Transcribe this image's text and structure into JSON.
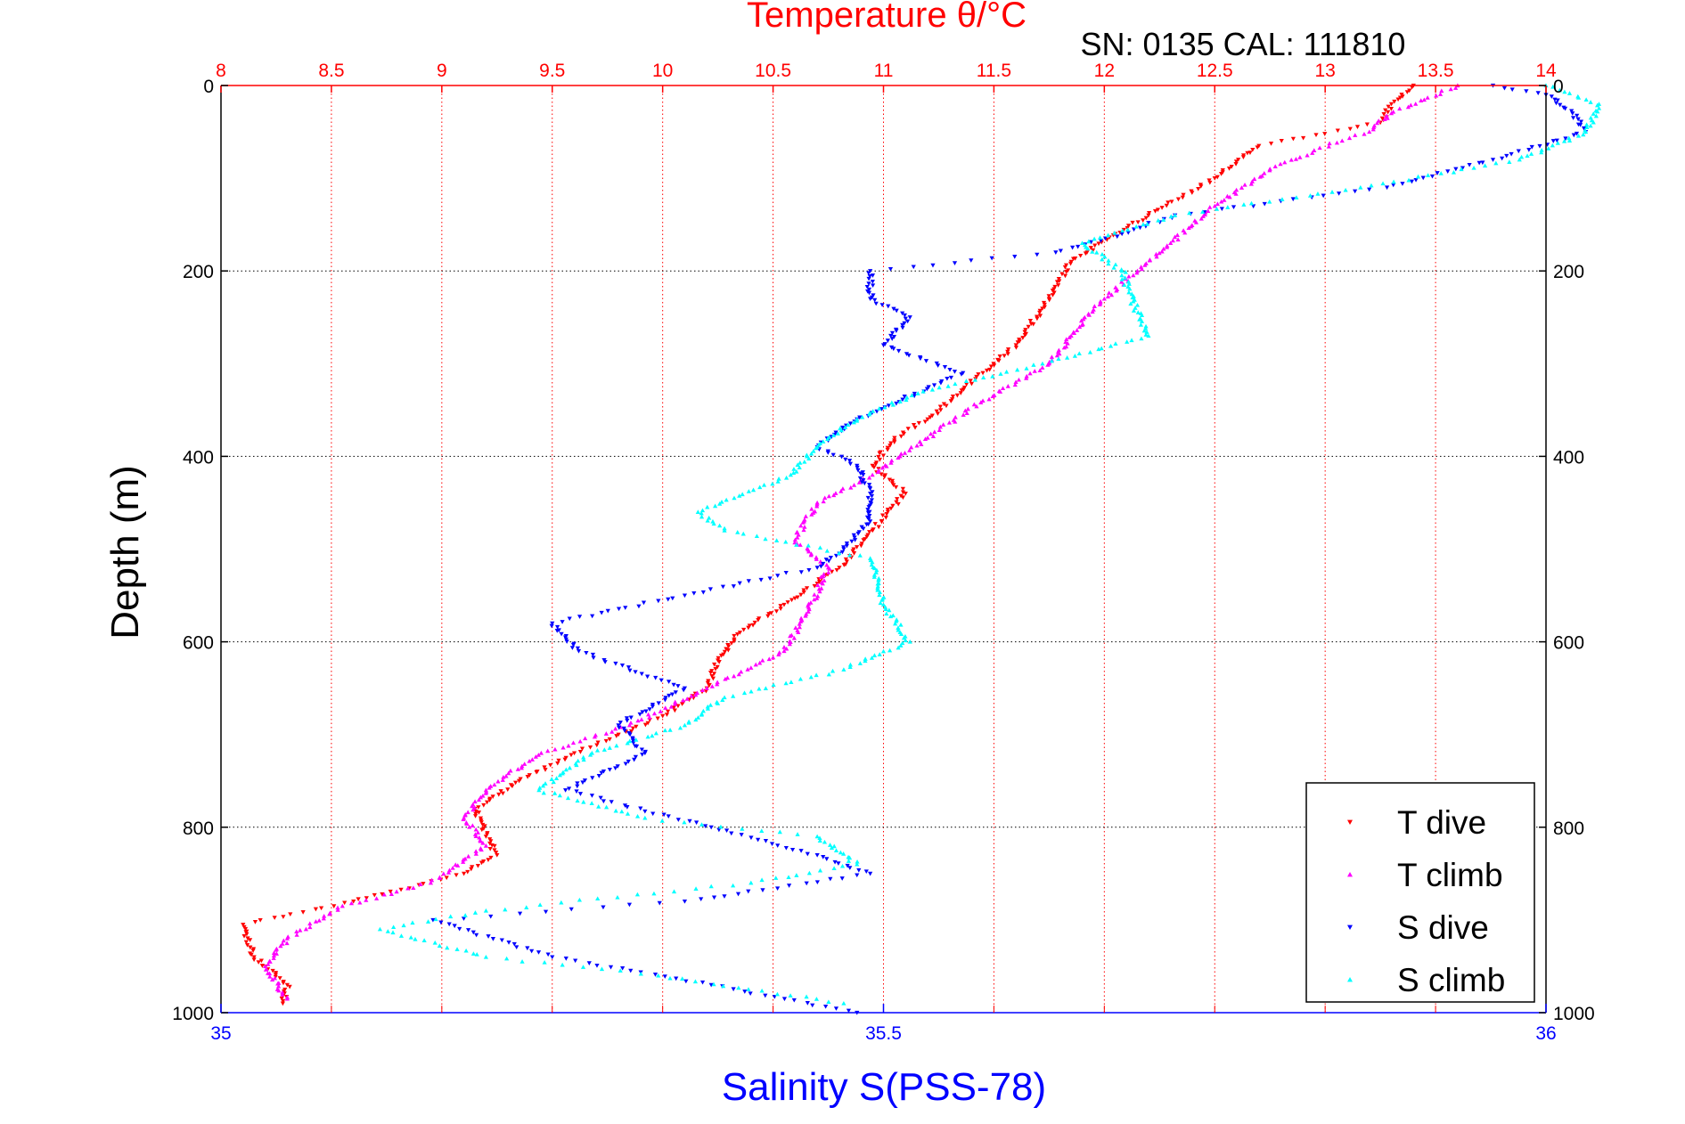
{
  "chart_data": {
    "type": "scatter",
    "title": "Temperature θ/°C",
    "subtitle": "SN: 0135  CAL: 111810",
    "xlabel": "Salinity S(PSS-78)",
    "ylabel": "Depth (m)",
    "x_top_label": "Temperature θ/°C",
    "x_top_range": [
      8,
      14
    ],
    "x_top_ticks": [
      "8",
      "8.5",
      "9",
      "9.5",
      "10",
      "10.5",
      "11",
      "11.5",
      "12",
      "12.5",
      "13",
      "13.5",
      "14"
    ],
    "x_bottom_range": [
      35,
      36
    ],
    "x_bottom_ticks": [
      "35",
      "35.5",
      "36"
    ],
    "y_range": [
      0,
      1000
    ],
    "y_reversed": true,
    "y_ticks": [
      "0",
      "200",
      "400",
      "600",
      "800",
      "1000"
    ],
    "grid": true,
    "legend_position": "bottom-right",
    "colors": {
      "top_axis": "#ff0000",
      "bottom_axis": "#0000ff",
      "t_dive": "#ff0000",
      "t_climb": "#ff00ff",
      "s_dive": "#0000ff",
      "s_climb": "#00ffff"
    },
    "series": [
      {
        "name": "T dive",
        "axis": "temperature",
        "marker": "down-triangle",
        "color": "#ff0000",
        "points": [
          [
            13.4,
            0
          ],
          [
            13.3,
            20
          ],
          [
            13.25,
            40
          ],
          [
            12.7,
            65
          ],
          [
            12.5,
            100
          ],
          [
            12.2,
            140
          ],
          [
            12.05,
            160
          ],
          [
            11.85,
            190
          ],
          [
            11.75,
            230
          ],
          [
            11.6,
            280
          ],
          [
            11.45,
            310
          ],
          [
            11.2,
            360
          ],
          [
            11.05,
            380
          ],
          [
            10.95,
            410
          ],
          [
            11.1,
            440
          ],
          [
            10.95,
            480
          ],
          [
            10.8,
            520
          ],
          [
            10.55,
            560
          ],
          [
            10.35,
            590
          ],
          [
            10.25,
            620
          ],
          [
            10.2,
            650
          ],
          [
            10.0,
            680
          ],
          [
            9.8,
            700
          ],
          [
            9.6,
            720
          ],
          [
            9.35,
            750
          ],
          [
            9.15,
            780
          ],
          [
            9.2,
            810
          ],
          [
            9.25,
            830
          ],
          [
            9.1,
            850
          ],
          [
            8.6,
            880
          ],
          [
            8.1,
            905
          ],
          [
            8.15,
            940
          ],
          [
            8.3,
            970
          ],
          [
            8.28,
            990
          ]
        ]
      },
      {
        "name": "T climb",
        "axis": "temperature",
        "marker": "up-triangle",
        "color": "#ff00ff",
        "points": [
          [
            13.6,
            0
          ],
          [
            13.3,
            30
          ],
          [
            13.2,
            50
          ],
          [
            12.95,
            70
          ],
          [
            12.75,
            90
          ],
          [
            12.5,
            130
          ],
          [
            12.3,
            170
          ],
          [
            12.15,
            200
          ],
          [
            12.0,
            230
          ],
          [
            11.85,
            270
          ],
          [
            11.75,
            300
          ],
          [
            11.45,
            340
          ],
          [
            11.2,
            380
          ],
          [
            10.95,
            420
          ],
          [
            10.7,
            450
          ],
          [
            10.6,
            490
          ],
          [
            10.75,
            520
          ],
          [
            10.65,
            570
          ],
          [
            10.55,
            610
          ],
          [
            10.2,
            650
          ],
          [
            9.85,
            690
          ],
          [
            9.45,
            720
          ],
          [
            9.2,
            760
          ],
          [
            9.1,
            790
          ],
          [
            9.2,
            820
          ],
          [
            8.95,
            860
          ],
          [
            8.55,
            885
          ],
          [
            8.3,
            920
          ],
          [
            8.2,
            950
          ],
          [
            8.3,
            985
          ]
        ]
      },
      {
        "name": "S dive",
        "axis": "salinity",
        "marker": "down-triangle",
        "color": "#0000ff",
        "points": [
          [
            35.96,
            0
          ],
          [
            36.0,
            10
          ],
          [
            36.02,
            30
          ],
          [
            36.03,
            50
          ],
          [
            35.96,
            80
          ],
          [
            35.88,
            110
          ],
          [
            35.72,
            140
          ],
          [
            35.68,
            160
          ],
          [
            35.63,
            180
          ],
          [
            35.49,
            200
          ],
          [
            35.49,
            230
          ],
          [
            35.52,
            250
          ],
          [
            35.5,
            280
          ],
          [
            35.56,
            310
          ],
          [
            35.48,
            360
          ],
          [
            35.45,
            390
          ],
          [
            35.48,
            410
          ],
          [
            35.49,
            440
          ],
          [
            35.49,
            470
          ],
          [
            35.47,
            500
          ],
          [
            35.45,
            520
          ],
          [
            35.35,
            550
          ],
          [
            35.25,
            580
          ],
          [
            35.27,
            610
          ],
          [
            35.35,
            650
          ],
          [
            35.3,
            690
          ],
          [
            35.32,
            720
          ],
          [
            35.26,
            760
          ],
          [
            35.37,
            800
          ],
          [
            35.45,
            830
          ],
          [
            35.49,
            850
          ],
          [
            35.35,
            880
          ],
          [
            35.16,
            900
          ],
          [
            35.25,
            940
          ],
          [
            35.37,
            970
          ],
          [
            35.48,
            1000
          ]
        ]
      },
      {
        "name": "S climb",
        "axis": "salinity",
        "marker": "up-triangle",
        "color": "#00ffff",
        "points": [
          [
            36.0,
            0
          ],
          [
            36.04,
            20
          ],
          [
            36.03,
            50
          ],
          [
            35.98,
            80
          ],
          [
            35.86,
            110
          ],
          [
            35.72,
            140
          ],
          [
            35.65,
            170
          ],
          [
            35.68,
            200
          ],
          [
            35.69,
            240
          ],
          [
            35.7,
            270
          ],
          [
            35.62,
            300
          ],
          [
            35.53,
            330
          ],
          [
            35.48,
            360
          ],
          [
            35.45,
            390
          ],
          [
            35.43,
            420
          ],
          [
            35.36,
            460
          ],
          [
            35.38,
            480
          ],
          [
            35.49,
            510
          ],
          [
            35.5,
            560
          ],
          [
            35.52,
            600
          ],
          [
            35.47,
            630
          ],
          [
            35.38,
            660
          ],
          [
            35.35,
            690
          ],
          [
            35.28,
            720
          ],
          [
            35.24,
            760
          ],
          [
            35.32,
            790
          ],
          [
            35.45,
            810
          ],
          [
            35.48,
            840
          ],
          [
            35.4,
            860
          ],
          [
            35.2,
            890
          ],
          [
            35.12,
            910
          ],
          [
            35.2,
            940
          ],
          [
            35.33,
            960
          ],
          [
            35.47,
            990
          ]
        ]
      }
    ],
    "legend": [
      {
        "label": "T dive",
        "marker": "down-triangle",
        "color": "#ff0000"
      },
      {
        "label": "T climb",
        "marker": "up-triangle",
        "color": "#ff00ff"
      },
      {
        "label": "S dive",
        "marker": "down-triangle",
        "color": "#0000ff"
      },
      {
        "label": "S climb",
        "marker": "up-triangle",
        "color": "#00ffff"
      }
    ]
  }
}
